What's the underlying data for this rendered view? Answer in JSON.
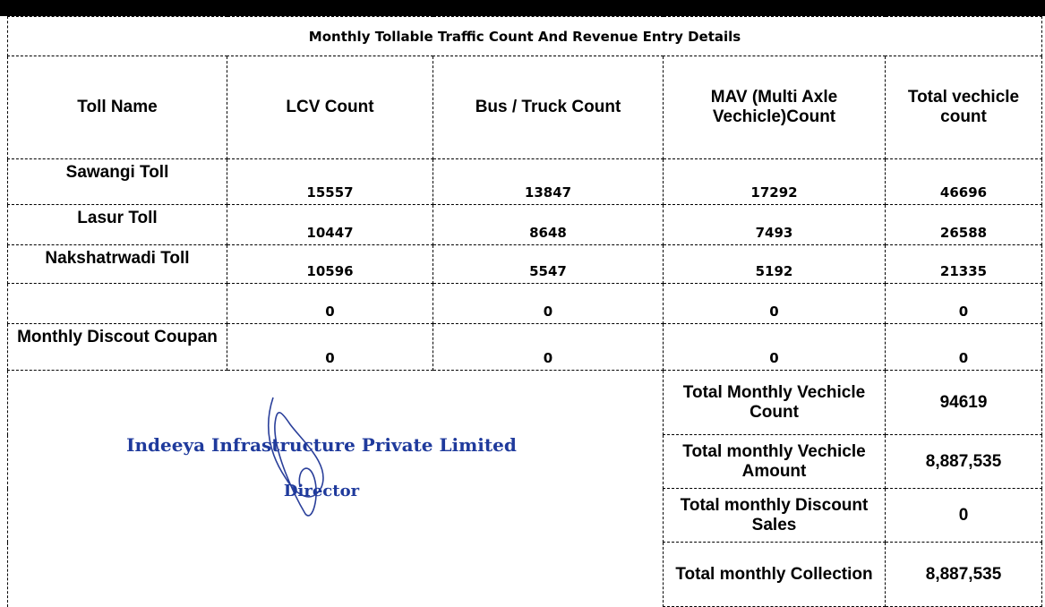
{
  "table": {
    "title": "Monthly Tollable Traffic Count And Revenue Entry Details",
    "headers": [
      "Toll Name",
      "LCV Count",
      "Bus / Truck Count",
      "MAV (Multi Axle Vechicle)Count",
      "Total vechicle count"
    ],
    "rows": [
      [
        "Sawangi Toll",
        "15557",
        "13847",
        "17292",
        "46696"
      ],
      [
        "Lasur Toll",
        "10447",
        "8648",
        "7493",
        "26588"
      ],
      [
        "Nakshatrwadi Toll",
        "10596",
        "5547",
        "5192",
        "21335"
      ],
      [
        "",
        "0",
        "0",
        "0",
        "0"
      ],
      [
        "Monthly Discout Coupan",
        "0",
        "0",
        "0",
        "0"
      ]
    ],
    "summary": [
      [
        "Total Monthly Vechicle Count",
        "94619"
      ],
      [
        "Total monthly Vechicle Amount",
        "8,887,535"
      ],
      [
        "Total monthly Discount Sales",
        "0"
      ],
      [
        "Total monthly Collection",
        "8,887,535"
      ]
    ]
  },
  "stamp": {
    "company": "Indeeya Infrastructure Private Limited",
    "title": "Director"
  }
}
